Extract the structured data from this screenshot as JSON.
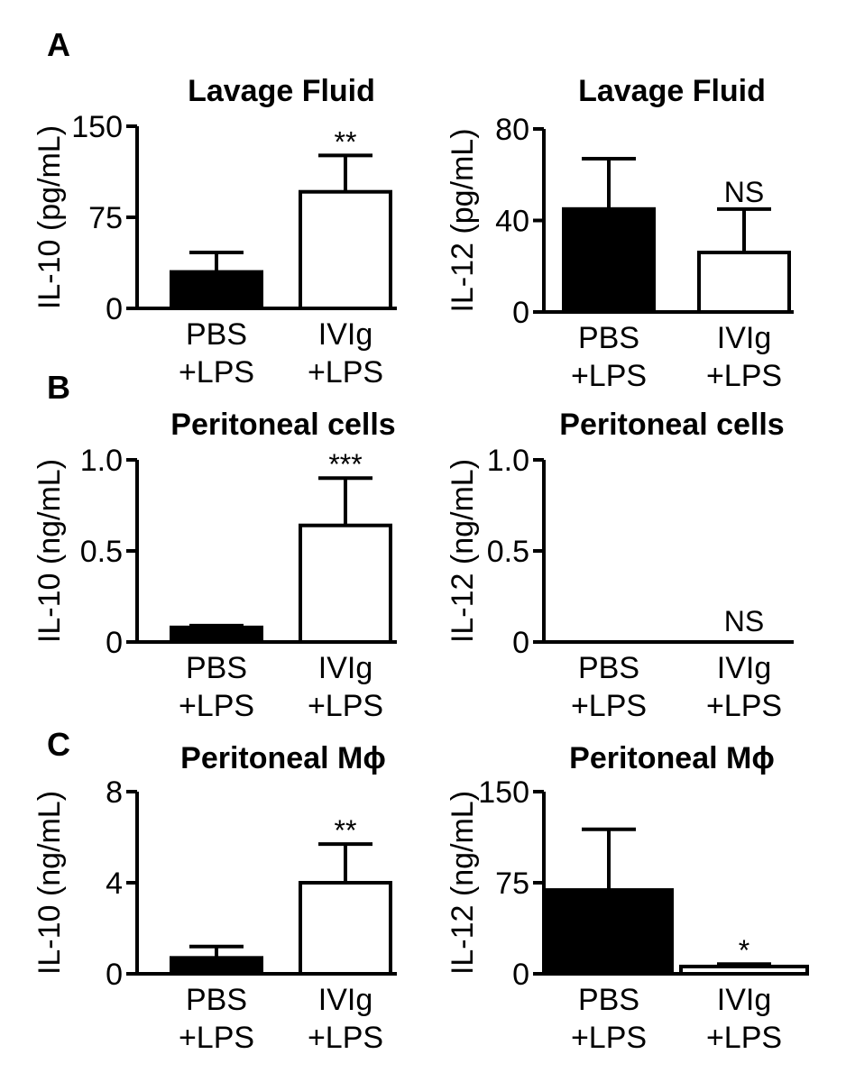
{
  "chart_data": [
    {
      "panel": "A",
      "type": "bar",
      "title": "Lavage Fluid",
      "ylabel": "IL-10 (pg/mL)",
      "ylim": [
        0,
        150
      ],
      "yticks": [
        "0",
        "75",
        "150"
      ],
      "categories": [
        [
          "PBS",
          "+LPS"
        ],
        [
          "IVIg",
          "+LPS"
        ]
      ],
      "values": [
        30,
        96
      ],
      "errors": [
        16,
        30
      ],
      "fills": [
        "#000000",
        "#ffffff"
      ],
      "significance": [
        "",
        "**"
      ]
    },
    {
      "panel": "",
      "type": "bar",
      "title": "Lavage Fluid",
      "ylabel": "IL-12 (pg/mL)",
      "ylim": [
        0,
        80
      ],
      "yticks": [
        "0",
        "40",
        "80"
      ],
      "categories": [
        [
          "PBS",
          "+LPS"
        ],
        [
          "IVIg",
          "+LPS"
        ]
      ],
      "values": [
        45,
        26
      ],
      "errors": [
        22,
        19
      ],
      "fills": [
        "#000000",
        "#ffffff"
      ],
      "significance": [
        "",
        "NS"
      ]
    },
    {
      "panel": "B",
      "type": "bar",
      "title": "Peritoneal cells",
      "ylabel": "IL-10 (ng/mL)",
      "ylim": [
        0,
        1.0
      ],
      "yticks": [
        "0",
        "0.5",
        "1.0"
      ],
      "categories": [
        [
          "PBS",
          "+LPS"
        ],
        [
          "IVIg",
          "+LPS"
        ]
      ],
      "values": [
        0.08,
        0.64
      ],
      "errors": [
        0.01,
        0.26
      ],
      "fills": [
        "#000000",
        "#ffffff"
      ],
      "significance": [
        "",
        "***"
      ]
    },
    {
      "panel": "",
      "type": "bar",
      "title": "Peritoneal cells",
      "ylabel": "IL-12 (ng/mL)",
      "ylim": [
        0,
        1.0
      ],
      "yticks": [
        "0",
        "0.5",
        "1.0"
      ],
      "categories": [
        [
          "PBS",
          "+LPS"
        ],
        [
          "IVIg",
          "+LPS"
        ]
      ],
      "values": [
        0,
        0
      ],
      "errors": [
        0,
        0
      ],
      "fills": [
        "#000000",
        "#ffffff"
      ],
      "significance": [
        "",
        "NS"
      ]
    },
    {
      "panel": "C",
      "type": "bar",
      "title": "Peritoneal Mϕ",
      "ylabel": "IL-10 (ng/mL)",
      "ylim": [
        0,
        8
      ],
      "yticks": [
        "0",
        "4",
        "8"
      ],
      "categories": [
        [
          "PBS",
          "+LPS"
        ],
        [
          "IVIg",
          "+LPS"
        ]
      ],
      "values": [
        0.7,
        4.0
      ],
      "errors": [
        0.5,
        1.7
      ],
      "fills": [
        "#000000",
        "#ffffff"
      ],
      "significance": [
        "",
        "**"
      ]
    },
    {
      "panel": "",
      "type": "bar",
      "title": "Peritoneal Mϕ",
      "ylabel": "IL-12 (ng/mL)",
      "ylim": [
        0,
        150
      ],
      "yticks": [
        "0",
        "75",
        "150"
      ],
      "categories": [
        [
          "PBS",
          "+LPS"
        ],
        [
          "IVIg",
          "+LPS"
        ]
      ],
      "values": [
        69,
        6
      ],
      "errors": [
        50,
        2
      ],
      "fills": [
        "#000000",
        "#ffffff"
      ],
      "significance": [
        "",
        "*"
      ]
    }
  ]
}
